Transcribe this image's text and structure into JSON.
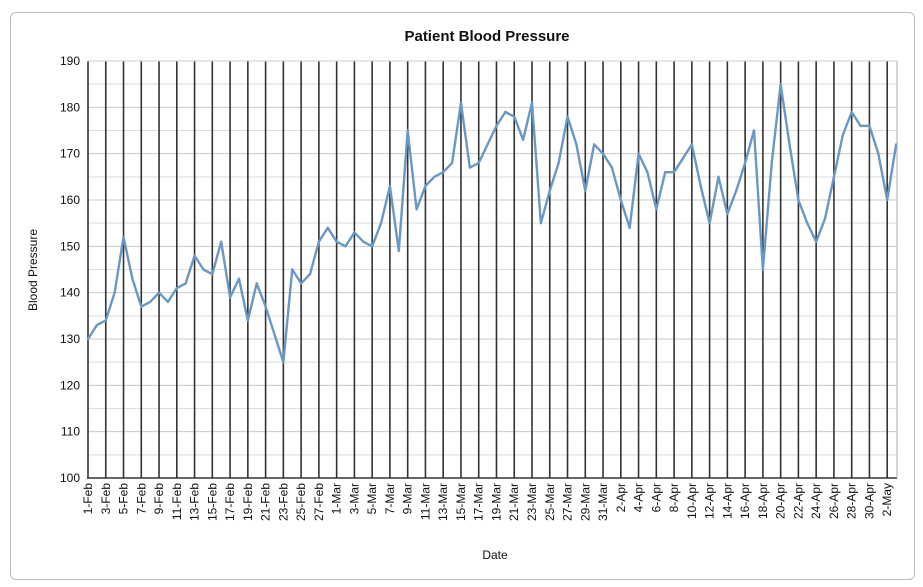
{
  "chart_data": {
    "type": "line",
    "title": "Patient Blood Pressure",
    "xlabel": "Date",
    "ylabel": "Blood Pressure",
    "ylim": [
      100,
      190
    ],
    "yticks": [
      100,
      110,
      120,
      130,
      140,
      150,
      160,
      170,
      180,
      190
    ],
    "grid": true,
    "series_color": "#6a98c4",
    "x_start": "1-Feb",
    "x_tick_labels": [
      "1-Feb",
      "3-Feb",
      "5-Feb",
      "7-Feb",
      "9-Feb",
      "11-Feb",
      "13-Feb",
      "15-Feb",
      "17-Feb",
      "19-Feb",
      "21-Feb",
      "23-Feb",
      "25-Feb",
      "27-Feb",
      "1-Mar",
      "3-Mar",
      "5-Mar",
      "7-Mar",
      "9-Mar",
      "11-Mar",
      "13-Mar",
      "15-Mar",
      "17-Mar",
      "19-Mar",
      "21-Mar",
      "23-Mar",
      "25-Mar",
      "27-Mar",
      "29-Mar",
      "31-Mar",
      "2-Apr",
      "4-Apr",
      "6-Apr",
      "8-Apr",
      "10-Apr",
      "12-Apr",
      "14-Apr",
      "16-Apr",
      "18-Apr",
      "20-Apr",
      "22-Apr",
      "24-Apr",
      "26-Apr",
      "28-Apr",
      "30-Apr",
      "2-May"
    ],
    "series": [
      {
        "name": "Blood Pressure",
        "values": [
          130,
          133,
          134,
          140,
          152,
          143,
          137,
          138,
          140,
          138,
          141,
          142,
          148,
          145,
          144,
          151,
          139,
          143,
          134,
          142,
          137,
          131,
          125,
          145,
          142,
          144,
          151,
          154,
          151,
          150,
          153,
          151,
          150,
          155,
          163,
          149,
          175,
          158,
          163,
          165,
          166,
          168,
          181,
          167,
          168,
          172,
          176,
          179,
          178,
          173,
          181,
          155,
          162,
          168,
          178,
          172,
          162,
          172,
          170,
          167,
          160,
          154,
          170,
          166,
          158,
          166,
          166,
          169,
          172,
          163,
          155,
          165,
          157,
          162,
          168,
          175,
          145,
          168,
          185,
          172,
          160,
          155,
          151,
          156,
          165,
          174,
          179,
          176,
          176,
          170,
          160,
          172
        ]
      }
    ]
  }
}
